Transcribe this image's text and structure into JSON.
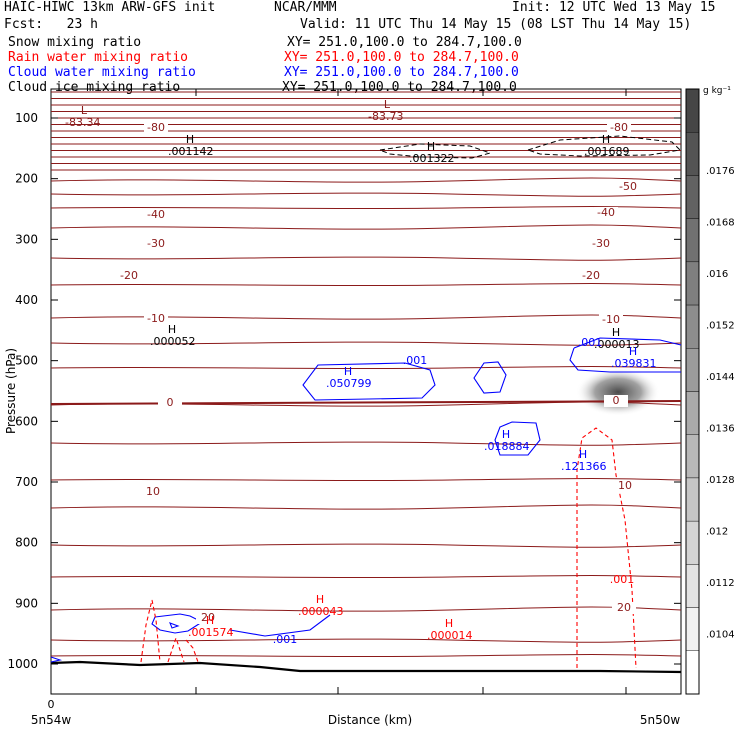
{
  "header": {
    "model": "HAIC-HIWC 13km ARW-GFS init",
    "org": "NCAR/MMM",
    "init": "Init: 12 UTC Wed 13 May 15",
    "fcst": "Fcst:   23 h",
    "valid": "Valid: 11 UTC Thu 14 May 15 (08 LST Thu 14 May 15)"
  },
  "fields": [
    {
      "name": "Snow mixing ratio",
      "xy": "XY= 251.0,100.0 to 284.7,100.0",
      "color": "#000000"
    },
    {
      "name": "Rain water mixing ratio",
      "xy": "XY= 251.0,100.0 to 284.7,100.0",
      "color": "#ff0000"
    },
    {
      "name": "Cloud water mixing ratio",
      "xy": "XY= 251.0,100.0 to 284.7,100.0",
      "color": "#0000ff"
    },
    {
      "name": "Cloud ice mixing ratio",
      "xy": "XY= 251.0,100.0 to 284.7,100.0",
      "color": "#000000"
    }
  ],
  "chart_data": {
    "type": "cross-section contour",
    "ylabel": "Pressure (hPa)",
    "xlabel": "Distance (km)",
    "y_ticks": [
      100,
      200,
      300,
      400,
      500,
      600,
      700,
      800,
      900,
      1000
    ],
    "x_tick_values": [
      "0"
    ],
    "x_end_labels": [
      "5n54w",
      "5n50w"
    ],
    "temperature_labels": [
      "-80",
      "-50",
      "-40",
      "-30",
      "-20",
      "-10",
      "0",
      "10",
      "20"
    ],
    "temperature_color": "#8b1a1a",
    "extrema": [
      {
        "mark": "L",
        "value": "-83.34",
        "color": "#8b1a1a"
      },
      {
        "mark": "L",
        "value": "-83.73",
        "color": "#8b1a1a"
      },
      {
        "mark": "H",
        "value": ".001142",
        "color": "#000000"
      },
      {
        "mark": "H",
        "value": ".001322",
        "color": "#000000"
      },
      {
        "mark": "H",
        "value": ".001689",
        "color": "#000000"
      },
      {
        "mark": "H",
        "value": ".000052",
        "color": "#000000"
      },
      {
        "mark": "H",
        "value": ".000013",
        "color": "#000000"
      },
      {
        "mark": "H",
        "value": ".050799",
        "color": "#0000ff"
      },
      {
        "mark": "H",
        "value": ".039831",
        "color": "#0000ff"
      },
      {
        "mark": "H",
        "value": ".018884",
        "color": "#0000ff"
      },
      {
        "mark": "H",
        "value": ".121366",
        "color": "#0000ff"
      },
      {
        "mark": "H",
        "value": ".001574",
        "color": "#ff0000"
      },
      {
        "mark": "H",
        "value": ".000043",
        "color": "#ff0000"
      },
      {
        "mark": "H",
        "value": ".000014",
        "color": "#ff0000"
      }
    ],
    "contour_labels": [
      {
        "text": ".001",
        "color": "#0000ff"
      },
      {
        "text": ".001",
        "color": "#0000ff"
      },
      {
        "text": ".001",
        "color": "#0000ff"
      },
      {
        "text": ".001",
        "color": "#ff0000"
      }
    ],
    "colorbar": {
      "units": "g kg⁻¹",
      "ticks": [
        ".0176",
        ".0168",
        ".016",
        ".0152",
        ".0144",
        ".0136",
        ".0128",
        ".012",
        ".0112",
        ".0104"
      ]
    }
  }
}
